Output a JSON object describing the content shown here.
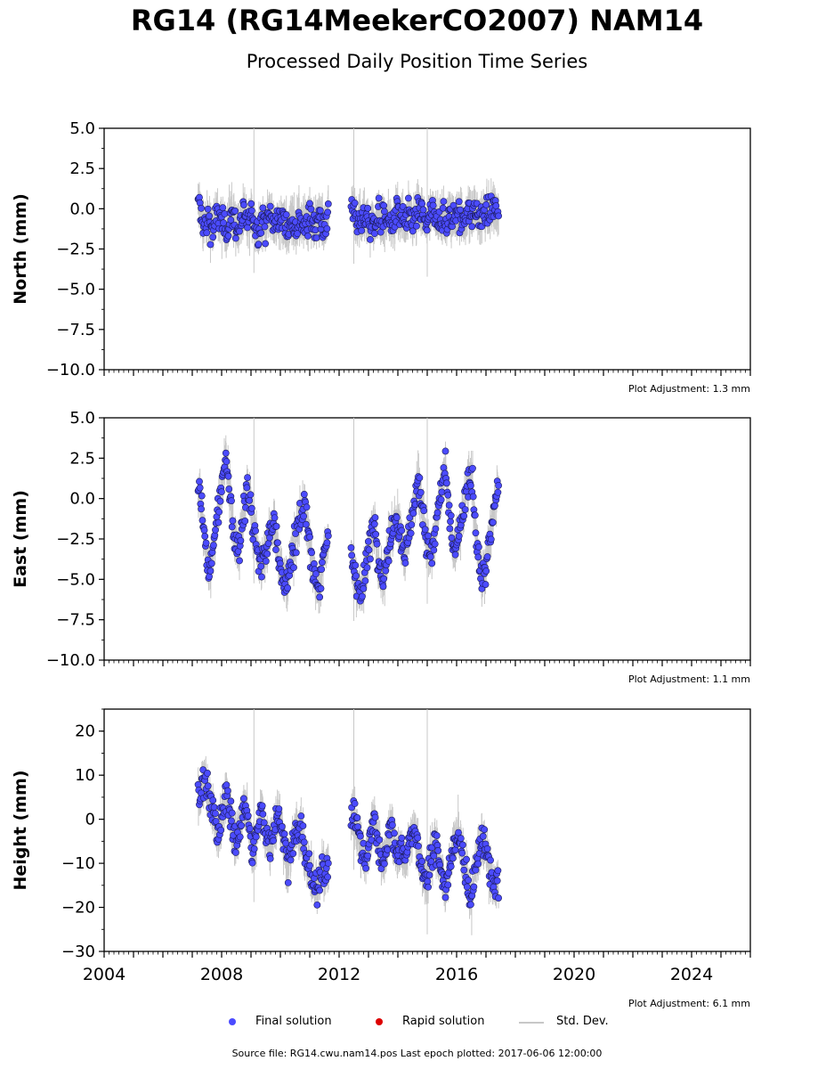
{
  "title": "RG14 (RG14MeekerCO2007) NAM14",
  "subtitle": "Processed Daily Position Time Series",
  "legend": {
    "final": "Final solution",
    "rapid": "Rapid solution",
    "std": "Std. Dev."
  },
  "footer": "Source file: RG14.cwu.nam14.pos  Last epoch plotted: 2017-06-06 12:00:00",
  "colors": {
    "final": "#4b4bff",
    "rapid": "#dd0000",
    "std": "#c8c8c8"
  },
  "chart_data": [
    {
      "type": "scatter",
      "ylabel": "North (mm)",
      "xlim": [
        2004,
        2026
      ],
      "ylim": [
        -10,
        5
      ],
      "yticks": [
        "5.0",
        "2.5",
        "0.0",
        "−2.5",
        "−5.0",
        "−7.5",
        "−10.0"
      ],
      "ytick_values": [
        5,
        2.5,
        0,
        -2.5,
        -5,
        -7.5,
        -10
      ],
      "xticks": [],
      "adjustment": "Plot Adjustment: 1.3 mm",
      "series": [
        {
          "x": [
            2007.25,
            2007.4,
            2007.55,
            2007.7,
            2007.85,
            2008.0,
            2008.15,
            2008.3,
            2008.45,
            2008.6,
            2008.75,
            2008.9,
            2009.05,
            2009.2,
            2009.35,
            2009.5,
            2009.65,
            2009.8,
            2009.95,
            2010.1,
            2010.25,
            2010.4,
            2010.55,
            2010.7,
            2010.85,
            2011.0,
            2011.15,
            2011.3,
            2011.45,
            2011.6,
            2012.45,
            2012.6,
            2012.75,
            2012.9,
            2013.05,
            2013.2,
            2013.35,
            2013.5,
            2013.65,
            2013.8,
            2013.95,
            2014.1,
            2014.25,
            2014.4,
            2014.55,
            2014.7,
            2014.85,
            2015.0,
            2015.15,
            2015.3,
            2015.45,
            2015.6,
            2015.75,
            2015.9,
            2016.05,
            2016.2,
            2016.35,
            2016.5,
            2016.65,
            2016.8,
            2016.95,
            2017.1,
            2017.25,
            2017.4
          ],
          "y": [
            0.1,
            -1.1,
            -0.6,
            -1.3,
            -0.4,
            -0.9,
            -1.5,
            -0.2,
            -0.8,
            -1.2,
            -0.5,
            -1.0,
            -0.3,
            -1.4,
            -0.7,
            -0.9,
            -0.2,
            -1.1,
            -0.6,
            -0.8,
            -1.3,
            -0.4,
            -1.0,
            -0.5,
            -1.2,
            -0.7,
            -0.9,
            -0.3,
            -1.1,
            -0.6,
            0.2,
            -0.7,
            -1.0,
            -0.4,
            -1.2,
            -0.8,
            -0.3,
            -0.9,
            -0.5,
            -1.1,
            -0.2,
            -0.6,
            -1.0,
            -0.4,
            -0.8,
            -0.1,
            -0.5,
            -0.9,
            -0.3,
            -0.7,
            -0.2,
            -1.0,
            -0.4,
            -0.6,
            -0.1,
            -0.8,
            -0.3,
            -0.5,
            0.0,
            -0.7,
            -0.2,
            -0.4,
            0.1,
            -0.3
          ]
        }
      ]
    },
    {
      "type": "scatter",
      "ylabel": "East (mm)",
      "xlim": [
        2004,
        2026
      ],
      "ylim": [
        -10,
        5
      ],
      "yticks": [
        "5.0",
        "2.5",
        "0.0",
        "−2.5",
        "−5.0",
        "−7.5",
        "−10.0"
      ],
      "ytick_values": [
        5,
        2.5,
        0,
        -2.5,
        -5,
        -7.5,
        -10
      ],
      "xticks": [],
      "adjustment": "Plot Adjustment: 1.1 mm",
      "series": [
        {
          "x": [
            2007.25,
            2007.4,
            2007.55,
            2007.7,
            2007.85,
            2008.0,
            2008.15,
            2008.3,
            2008.45,
            2008.6,
            2008.75,
            2008.9,
            2009.05,
            2009.2,
            2009.35,
            2009.5,
            2009.65,
            2009.8,
            2009.95,
            2010.1,
            2010.25,
            2010.4,
            2010.55,
            2010.7,
            2010.85,
            2011.0,
            2011.15,
            2011.3,
            2011.45,
            2011.6,
            2012.45,
            2012.6,
            2012.75,
            2012.9,
            2013.05,
            2013.2,
            2013.35,
            2013.5,
            2013.65,
            2013.8,
            2013.95,
            2014.1,
            2014.25,
            2014.4,
            2014.55,
            2014.7,
            2014.85,
            2015.0,
            2015.15,
            2015.3,
            2015.45,
            2015.6,
            2015.75,
            2015.9,
            2016.05,
            2016.2,
            2016.35,
            2016.5,
            2016.65,
            2016.8,
            2016.95,
            2017.1,
            2017.25,
            2017.4
          ],
          "y": [
            0.5,
            -2.2,
            -4.5,
            -3.6,
            -1.0,
            0.8,
            2.4,
            0.2,
            -2.8,
            -3.2,
            -0.6,
            0.9,
            -1.4,
            -3.0,
            -4.2,
            -3.4,
            -2.0,
            -1.2,
            -3.8,
            -5.2,
            -4.8,
            -3.6,
            -2.2,
            -1.0,
            -0.4,
            -2.8,
            -4.8,
            -5.6,
            -4.2,
            -2.6,
            -3.8,
            -5.2,
            -6.0,
            -4.6,
            -2.8,
            -1.2,
            -4.0,
            -5.0,
            -3.4,
            -2.0,
            -0.8,
            -2.2,
            -3.6,
            -2.0,
            -0.4,
            1.2,
            -0.6,
            -3.2,
            -3.6,
            -1.6,
            0.2,
            1.8,
            -0.8,
            -3.4,
            -2.6,
            -1.2,
            0.4,
            1.6,
            -1.8,
            -4.6,
            -4.8,
            -3.0,
            -1.0,
            0.8
          ]
        }
      ]
    },
    {
      "type": "scatter",
      "ylabel": "Height (mm)",
      "xlim": [
        2004,
        2026
      ],
      "ylim": [
        -30,
        25
      ],
      "yticks": [
        "20",
        "10",
        "0",
        "−10",
        "−20",
        "−30"
      ],
      "ytick_values": [
        20,
        10,
        0,
        -10,
        -20,
        -30
      ],
      "xticks": [
        "2004",
        "2008",
        "2012",
        "2016",
        "2020",
        "2024"
      ],
      "xtick_values": [
        2004,
        2008,
        2012,
        2016,
        2020,
        2024
      ],
      "adjustment": "Plot Adjustment: 6.1 mm",
      "series": [
        {
          "x": [
            2007.25,
            2007.4,
            2007.55,
            2007.7,
            2007.85,
            2008.0,
            2008.15,
            2008.3,
            2008.45,
            2008.6,
            2008.75,
            2008.9,
            2009.05,
            2009.2,
            2009.35,
            2009.5,
            2009.65,
            2009.8,
            2009.95,
            2010.1,
            2010.25,
            2010.4,
            2010.55,
            2010.7,
            2010.85,
            2011.0,
            2011.15,
            2011.3,
            2011.45,
            2011.6,
            2012.45,
            2012.6,
            2012.75,
            2012.9,
            2013.05,
            2013.2,
            2013.35,
            2013.5,
            2013.65,
            2013.8,
            2013.95,
            2014.1,
            2014.25,
            2014.4,
            2014.55,
            2014.7,
            2014.85,
            2015.0,
            2015.15,
            2015.3,
            2015.45,
            2015.6,
            2015.75,
            2015.9,
            2016.05,
            2016.2,
            2016.35,
            2016.5,
            2016.65,
            2016.8,
            2016.95,
            2017.1,
            2017.25,
            2017.4
          ],
          "y": [
            4,
            10,
            6,
            2,
            -4,
            0,
            6,
            2,
            -6,
            -2,
            4,
            0,
            -8,
            -4,
            2,
            -3,
            -6,
            -1,
            2,
            -5,
            -10,
            -6,
            -2,
            -4,
            -8,
            -12,
            -16,
            -14,
            -10,
            -12,
            2,
            -2,
            -6,
            -10,
            -4,
            0,
            -6,
            -10,
            -4,
            -2,
            -8,
            -6,
            -10,
            -4,
            -2,
            -8,
            -12,
            -14,
            -8,
            -6,
            -10,
            -16,
            -12,
            -6,
            -2,
            -8,
            -14,
            -18,
            -10,
            -6,
            -4,
            -12,
            -16,
            -14
          ]
        }
      ]
    }
  ]
}
